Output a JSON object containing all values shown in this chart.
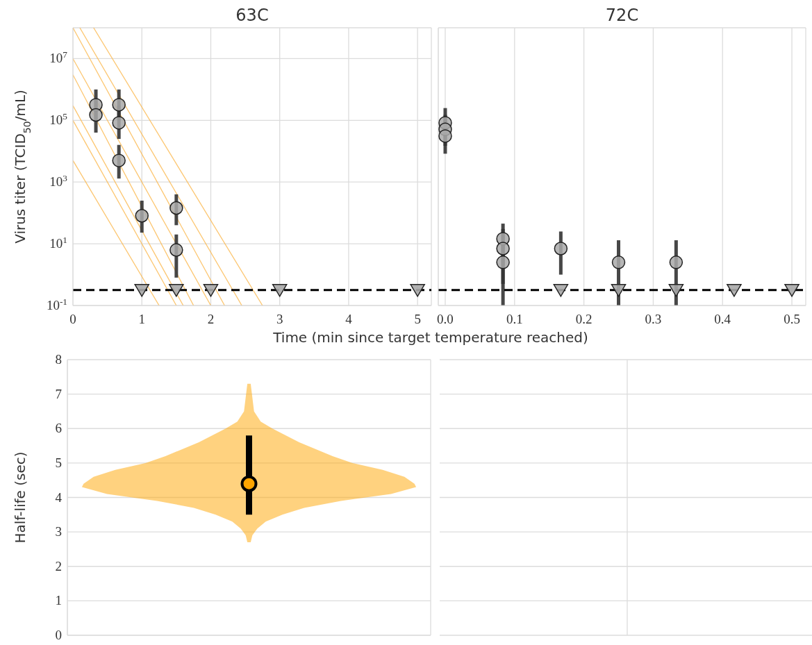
{
  "chart_data": [
    {
      "type": "scatter",
      "title": "63C",
      "xlabel": "Time (min since target temperature reached)",
      "ylabel": "Virus titer (TCID$_{50}$/mL)",
      "xlim": [
        0,
        5.2
      ],
      "xticks": [
        0,
        1,
        2,
        3,
        4,
        5
      ],
      "ylim": [
        0.1,
        100000000
      ],
      "yticks": [
        {
          "value": 0.1,
          "label": "10$^{-1}$"
        },
        {
          "value": 10,
          "label": "10$^{1}$"
        },
        {
          "value": 1000,
          "label": "10$^{3}$"
        },
        {
          "value": 100000,
          "label": "10$^{5}$"
        },
        {
          "value": 10000000,
          "label": "10$^{7}$"
        }
      ],
      "log": "y",
      "grid": true,
      "ref_lines": [
        {
          "axis": "y",
          "value": 0.316,
          "line_style": "dashed",
          "color": "#000000"
        }
      ],
      "series": [
        {
          "type": "line",
          "color": "#fbb64a",
          "x": [
            0,
            1.75
          ],
          "values": [
            3000000,
            0.1
          ]
        },
        {
          "type": "line",
          "color": "#fbb64a",
          "x": [
            0,
            2.2
          ],
          "values": [
            100000000,
            0.1
          ]
        },
        {
          "type": "line",
          "color": "#fbb64a",
          "x": [
            0,
            1.5
          ],
          "values": [
            100000,
            0.1
          ]
        },
        {
          "type": "line",
          "color": "#fbb64a",
          "x": [
            0,
            1.25
          ],
          "values": [
            5000,
            0.1
          ]
        },
        {
          "type": "line",
          "color": "#fbb64a",
          "x": [
            0.3,
            2.75
          ],
          "values": [
            100000000,
            0.1
          ]
        },
        {
          "type": "line",
          "color": "#fbb64a",
          "x": [
            0,
            2
          ],
          "values": [
            10000000,
            0.1
          ]
        },
        {
          "type": "line",
          "color": "#fbb64a",
          "x": [
            0,
            1.6
          ],
          "values": [
            300000,
            0.1
          ]
        },
        {
          "type": "line",
          "color": "#fbb64a",
          "x": [
            0.1,
            2.45
          ],
          "values": [
            100000000,
            0.1
          ]
        },
        {
          "marker": "circle",
          "color": "#a9a9a9",
          "x": [
            0.333,
            0.333,
            0.667,
            0.667,
            0.667,
            1,
            1.5,
            1.5
          ],
          "values": [
            320000,
            150000,
            320000,
            83000,
            5000,
            81,
            145,
            6.3
          ],
          "errors": [
            [
              100000,
              1000000
            ],
            [
              40000,
              500000
            ],
            [
              100000,
              1000000
            ],
            [
              25000,
              300000
            ],
            [
              1300,
              16000
            ],
            [
              23,
              250
            ],
            [
              40,
              400
            ],
            [
              0.8,
              20
            ]
          ]
        },
        {
          "marker": "triangle",
          "color": "#a9a9a9",
          "x": [
            1,
            1.5,
            2,
            3,
            5
          ],
          "values": [
            0.316,
            0.316,
            0.316,
            0.316,
            0.316
          ]
        }
      ]
    },
    {
      "type": "scatter",
      "title": "72C",
      "xlim": [
        -0.01,
        0.52
      ],
      "xticks": [
        {
          "value": 0,
          "label": "0.0"
        },
        {
          "value": 0.1,
          "label": "0.1"
        },
        {
          "value": 0.2,
          "label": "0.2"
        },
        {
          "value": 0.3,
          "label": "0.3"
        },
        {
          "value": 0.4,
          "label": "0.4"
        },
        {
          "value": 0.5,
          "label": "0.5"
        }
      ],
      "ylim": [
        0.1,
        100000000
      ],
      "yticks": [
        0.1,
        10,
        1000,
        100000,
        10000000
      ],
      "log": "y",
      "grid": true,
      "tick_labels": "x",
      "ref_lines": [
        {
          "axis": "y",
          "value": 0.316,
          "line_style": "dashed",
          "color": "#000000"
        }
      ],
      "series": [
        {
          "marker": "circle",
          "color": "#a9a9a9",
          "x": [
            0,
            0,
            0,
            0.0833,
            0.0833,
            0.0833,
            0.1667,
            0.25,
            0.333
          ],
          "values": [
            83000,
            51000,
            31000,
            14.5,
            7,
            2.5,
            7,
            2.5,
            2.5
          ],
          "errors": [
            [
              30000,
              250000
            ],
            [
              15000,
              150000
            ],
            [
              8300,
              100000
            ],
            [
              2,
              45
            ],
            [
              0.5,
              30
            ],
            [
              0.1,
              12
            ],
            [
              1,
              25
            ],
            [
              0.1,
              13
            ],
            [
              0.1,
              13
            ]
          ]
        },
        {
          "marker": "triangle",
          "color": "#a9a9a9",
          "x": [
            0.1667,
            0.25,
            0.333,
            0.4167,
            0.5
          ],
          "values": [
            0.316,
            0.316,
            0.316,
            0.316,
            0.316
          ]
        }
      ]
    },
    {
      "type": "scatter",
      "ylabel": "Half-life (sec)",
      "categories": [
        null
      ],
      "ylim": [
        0,
        8
      ],
      "yticks": [
        0,
        1,
        2,
        3,
        4,
        5,
        6,
        7,
        8
      ],
      "tick_labels": "y",
      "grid": true,
      "series": [
        {
          "marker": "circle",
          "color": "#ffa500",
          "values": [
            4.4
          ],
          "errors": [
            [
              3.5,
              5.8
            ]
          ]
        }
      ]
    },
    {
      "type": "other"
    }
  ]
}
